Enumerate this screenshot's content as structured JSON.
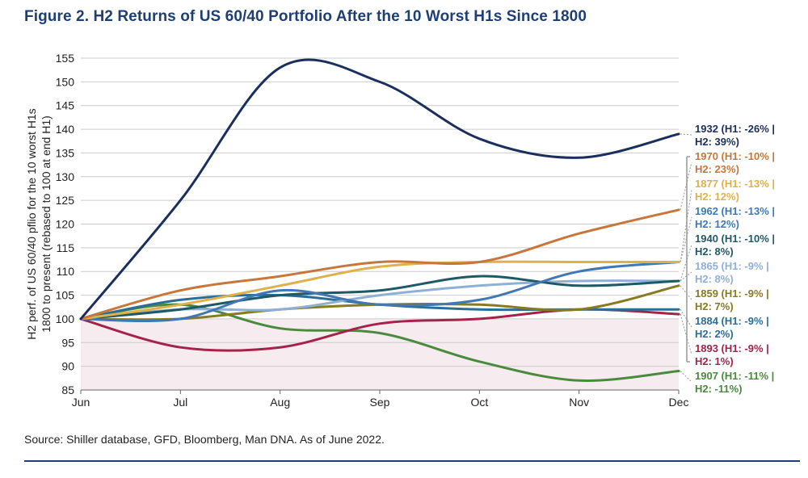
{
  "figure": {
    "title": "Figure 2. H2 Returns of US 60/40 Portfolio After the 10 Worst H1s Since 1800",
    "source": "Source: Shiller database, GFD, Bloomberg, Man DNA. As of June 2022."
  },
  "chart_data": {
    "type": "line",
    "title": "Figure 2. H2 Returns of US 60/40 Portfolio After the 10 Worst H1s Since 1800",
    "ylabel_lines": [
      "H2 perf. of US 60/40 pflio for the 10 worst H1s",
      "1800 to present (rebased to 100 at end H1)"
    ],
    "xlabel": "",
    "categories": [
      "Jun",
      "Jul",
      "Aug",
      "Sep",
      "Oct",
      "Nov",
      "Dec"
    ],
    "ylim": [
      85,
      155
    ],
    "yticks": [
      85,
      90,
      95,
      100,
      105,
      110,
      115,
      120,
      125,
      130,
      135,
      140,
      145,
      150,
      155
    ],
    "grid": true,
    "shaded_below": 100,
    "colors": {
      "shade": "#f6ecef",
      "grid": "#cccccc",
      "axis": "#666666",
      "text": "#222222",
      "bracket": "#999999"
    },
    "series": [
      {
        "name": "1932",
        "label_l1": "1932 (H1: -26% |",
        "label_l2": "H2: 39%)",
        "color": "#1b2f5e",
        "values": [
          100,
          125,
          153,
          150,
          138,
          134,
          139
        ]
      },
      {
        "name": "1970",
        "label_l1": "1970 (H1: -10% |",
        "label_l2": "H2: 23%)",
        "color": "#c8763a",
        "values": [
          100,
          106,
          109,
          112,
          112,
          118,
          123
        ]
      },
      {
        "name": "1877",
        "label_l1": "1877 (H1: -13% |",
        "label_l2": "H2: 12%)",
        "color": "#dfb14a",
        "values": [
          100,
          103,
          107,
          111,
          112,
          112,
          112
        ]
      },
      {
        "name": "1962",
        "label_l1": "1962 (H1: -13% |",
        "label_l2": "H2: 12%)",
        "color": "#3f78b5",
        "values": [
          100,
          100,
          106,
          103,
          104,
          110,
          112
        ]
      },
      {
        "name": "1940",
        "label_l1": "1940 (H1: -10% |",
        "label_l2": "H2: 8%)",
        "color": "#1e5a66",
        "values": [
          100,
          102,
          105,
          106,
          109,
          107,
          108
        ]
      },
      {
        "name": "1865",
        "label_l1": "1865 (H1: -9% |",
        "label_l2": "H2: 8%)",
        "color": "#8fb0d6",
        "values": [
          100,
          102,
          102,
          105,
          107,
          108,
          108
        ]
      },
      {
        "name": "1859",
        "label_l1": "1859 (H1: -9% |",
        "label_l2": "H2: 7%)",
        "color": "#877a22",
        "values": [
          100,
          100,
          102,
          103,
          103,
          102,
          107
        ]
      },
      {
        "name": "1884",
        "label_l1": "1884 (H1: -9% |",
        "label_l2": "H2: 2%)",
        "color": "#2a6e96",
        "values": [
          100,
          104,
          105,
          103,
          102,
          102,
          102
        ]
      },
      {
        "name": "1893",
        "label_l1": "1893 (H1: -9% |",
        "label_l2": "H2: 1%)",
        "color": "#a3234a",
        "values": [
          100,
          94,
          94,
          99,
          100,
          102,
          101
        ]
      },
      {
        "name": "1907",
        "label_l1": "1907 (H1: -11% |",
        "label_l2": "H2: -11%)",
        "color": "#4a8a3c",
        "values": [
          100,
          103,
          98,
          97,
          91,
          87,
          89
        ]
      }
    ]
  }
}
